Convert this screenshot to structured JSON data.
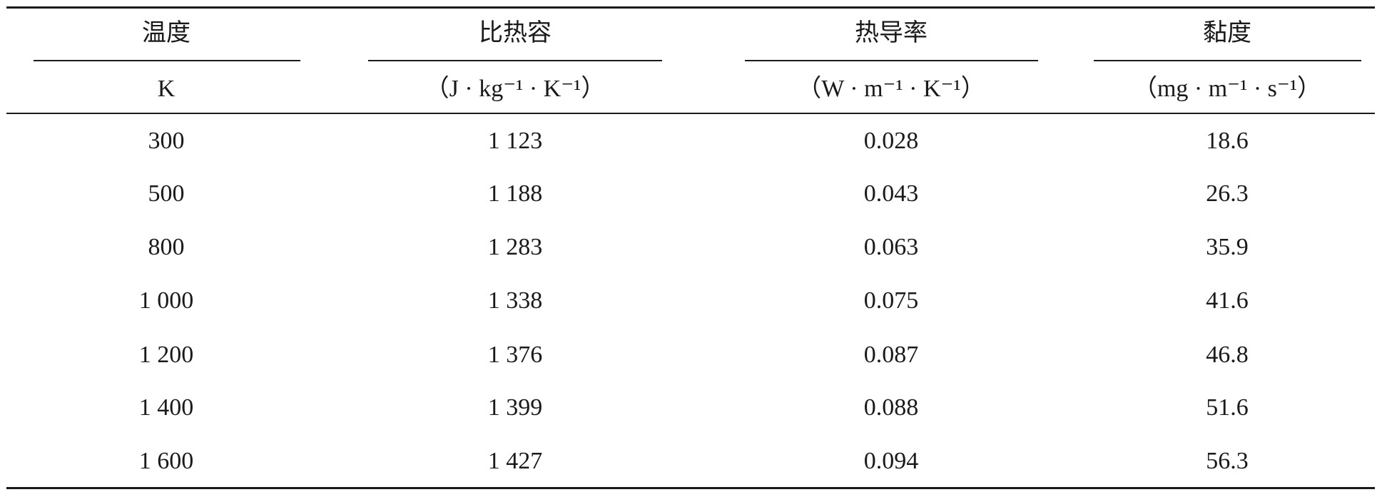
{
  "table": {
    "header": [
      {
        "name": "温度",
        "unit": "K"
      },
      {
        "name": "比热容",
        "unit": "（J · kg⁻¹ · K⁻¹）"
      },
      {
        "name": "热导率",
        "unit": "（W · m⁻¹ · K⁻¹）"
      },
      {
        "name": "黏度",
        "unit": "（mg · m⁻¹ · s⁻¹）"
      }
    ],
    "rows": [
      [
        "300",
        "1 123",
        "0.028",
        "18.6"
      ],
      [
        "500",
        "1 188",
        "0.043",
        "26.3"
      ],
      [
        "800",
        "1 283",
        "0.063",
        "35.9"
      ],
      [
        "1 000",
        "1 338",
        "0.075",
        "41.6"
      ],
      [
        "1 200",
        "1 376",
        "0.087",
        "46.8"
      ],
      [
        "1 400",
        "1 399",
        "0.088",
        "51.6"
      ],
      [
        "1 600",
        "1 427",
        "0.094",
        "56.3"
      ]
    ]
  }
}
